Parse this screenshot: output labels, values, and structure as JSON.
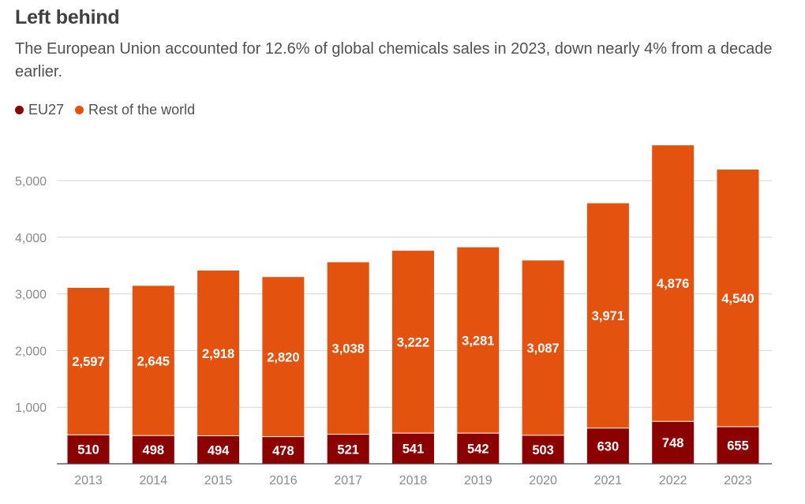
{
  "title": "Left behind",
  "subtitle": "The European Union accounted for 12.6% of global chemicals sales in 2023, down nearly 4% from a decade earlier.",
  "legend": [
    {
      "label": "EU27",
      "color": "#8b0000"
    },
    {
      "label": "Rest of the world",
      "color": "#e4520f"
    }
  ],
  "chart_data": {
    "type": "bar",
    "stacked": true,
    "categories": [
      "2013",
      "2014",
      "2015",
      "2016",
      "2017",
      "2018",
      "2019",
      "2020",
      "2021",
      "2022",
      "2023"
    ],
    "series": [
      {
        "name": "EU27",
        "color": "#8b0000",
        "values": [
          510,
          498,
          494,
          478,
          521,
          541,
          542,
          503,
          630,
          748,
          655
        ],
        "labels": [
          "510",
          "498",
          "494",
          "478",
          "521",
          "541",
          "542",
          "503",
          "630",
          "748",
          "655"
        ]
      },
      {
        "name": "Rest of the world",
        "color": "#e4520f",
        "values": [
          2597,
          2645,
          2918,
          2820,
          3038,
          3222,
          3281,
          3087,
          3971,
          4876,
          4540
        ],
        "labels": [
          "2,597",
          "2,645",
          "2,918",
          "2,820",
          "3,038",
          "3,222",
          "3,281",
          "3,087",
          "3,971",
          "4,876",
          "4,540"
        ]
      }
    ],
    "yticks": [
      1000,
      2000,
      3000,
      4000,
      5000
    ],
    "ytick_labels": [
      "1,000",
      "2,000",
      "3,000",
      "4,000",
      "5,000"
    ],
    "ylim": [
      0,
      5650
    ],
    "grid": true,
    "legend_position": "top-left"
  }
}
